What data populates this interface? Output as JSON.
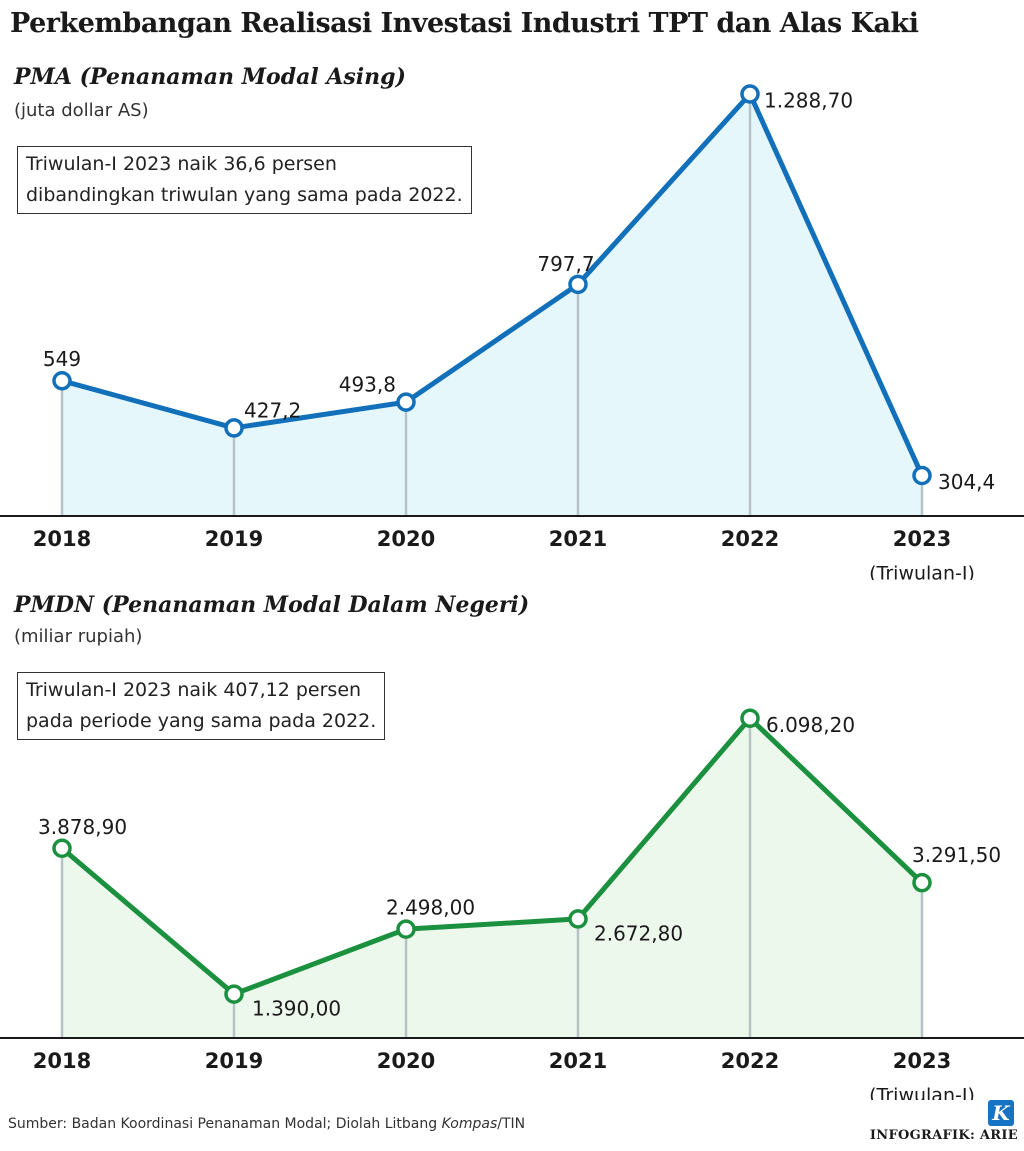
{
  "title": "Perkembangan Realisasi Investasi Industri TPT dan Alas Kaki",
  "colors": {
    "pma_line": "#1170b9",
    "pma_fill": "#e6f7fc",
    "pmdn_line": "#1b9140",
    "pmdn_fill": "#edf8ed",
    "drop_line": "#b5c2c6",
    "axis": "#1a1a1a"
  },
  "chart_data": [
    {
      "type": "area",
      "title": "PMA (Penanaman Modal Asing)",
      "ylabel": "(juta dollar AS)",
      "note": [
        "Triwulan-I 2023 naik 36,6 persen",
        "dibandingkan triwulan yang sama pada 2022."
      ],
      "categories": [
        "2018",
        "2019",
        "2020",
        "2021",
        "2022",
        "2023"
      ],
      "category_sublabels": [
        "",
        "",
        "",
        "",
        "",
        "(Triwulan-I)"
      ],
      "values": [
        549,
        427.2,
        493.8,
        797.7,
        1288.7,
        304.4
      ],
      "data_labels": [
        "549",
        "427,2",
        "493,8",
        "797,7",
        "1.288,70",
        "304,4"
      ],
      "ylim": [
        200,
        1330
      ],
      "grid": false
    },
    {
      "type": "area",
      "title": "PMDN (Penanaman Modal Dalam Negeri)",
      "ylabel": "(miliar rupiah)",
      "note": [
        "Triwulan-I 2023 naik 407,12 persen",
        "pada periode yang sama pada 2022."
      ],
      "categories": [
        "2018",
        "2019",
        "2020",
        "2021",
        "2022",
        "2023"
      ],
      "category_sublabels": [
        "",
        "",
        "",
        "",
        "",
        "(Triwulan-I)"
      ],
      "values": [
        3878.9,
        1390.0,
        2498.0,
        2672.8,
        6098.2,
        3291.5
      ],
      "data_labels": [
        "3.878,90",
        "1.390,00",
        "2.498,00",
        "2.672,80",
        "6.098,20",
        "3.291,50"
      ],
      "ylim": [
        640,
        6410
      ],
      "grid": false
    }
  ],
  "footer": {
    "source_prefix": "Sumber: Badan Koordinasi Penanaman Modal; Diolah Litbang ",
    "source_italic": "Kompas",
    "source_suffix": "/TIN",
    "credit": "INFOGRAFIK: ARIE",
    "logo_letter": "K"
  }
}
